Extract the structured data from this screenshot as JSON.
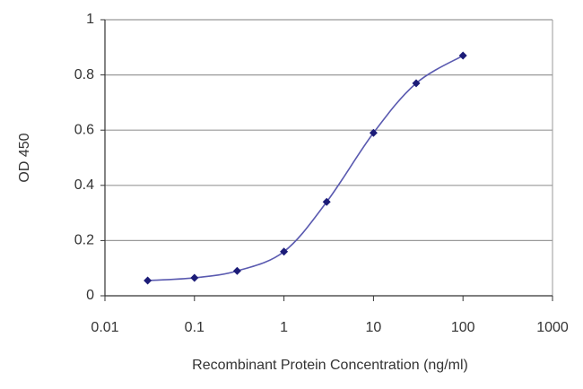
{
  "chart_data": {
    "type": "line",
    "x_label": "Recombinant Protein Concentration (ng/ml)",
    "y_label": "OD 450",
    "x": [
      0.03,
      0.1,
      0.3,
      1,
      3,
      10,
      30,
      100
    ],
    "series": [
      {
        "color": "#1c1c78",
        "values": [
          0.055,
          0.065,
          0.09,
          0.16,
          0.34,
          0.59,
          0.77,
          0.87
        ]
      }
    ],
    "line_color": "#5a5ab0",
    "x_log": true,
    "smooth": true,
    "xlim": [
      0.01,
      1000
    ],
    "xticks": [
      0.01,
      0.1,
      1,
      10,
      100,
      1000
    ],
    "ylim": [
      0,
      1
    ],
    "yticks": [
      0,
      0.2,
      0.4,
      0.6,
      0.8,
      1
    ],
    "grid": true
  }
}
